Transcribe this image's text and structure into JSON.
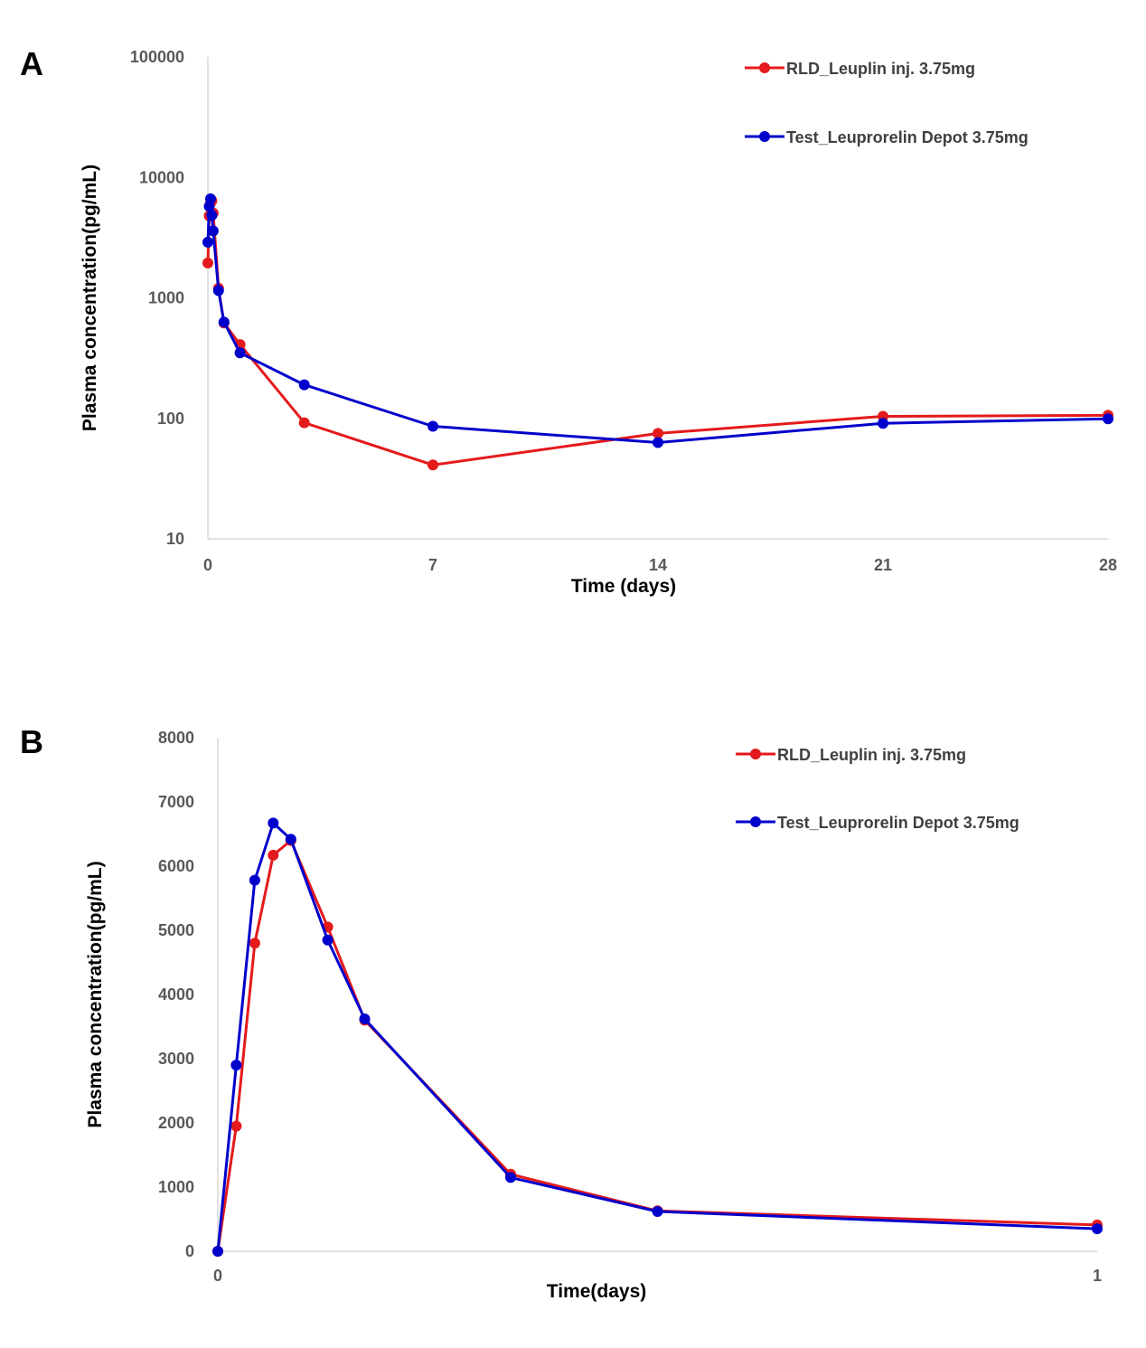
{
  "chart_data": [
    {
      "panel_label": "A",
      "type": "line",
      "y_scale": "log",
      "xlabel": "Time (days)",
      "ylabel": "Plasma concentration(pg/mL)",
      "xlim": [
        0,
        28
      ],
      "ylim": [
        10,
        100000
      ],
      "x_ticks": [
        "0",
        "7",
        "14",
        "21",
        "28"
      ],
      "y_ticks": [
        "10",
        "100",
        "1000",
        "10000",
        "100000"
      ],
      "grid": false,
      "legend_position": "top-right",
      "series": [
        {
          "name": "RLD_Leuplin inj. 3.75mg",
          "color": "#e41a1c",
          "x": [
            0,
            0.042,
            0.083,
            0.125,
            0.167,
            0.333,
            0.5,
            1,
            3,
            7,
            14,
            21,
            28
          ],
          "y": [
            1950,
            4800,
            6150,
            6400,
            5050,
            1200,
            620,
            410,
            92,
            41,
            75,
            104,
            106
          ]
        },
        {
          "name": "Test_Leuprorelin Depot 3.75mg",
          "color": "#0000cc",
          "x": [
            0,
            0.042,
            0.083,
            0.125,
            0.167,
            0.333,
            0.5,
            1,
            3,
            7,
            14,
            21,
            28
          ],
          "y": [
            2900,
            5750,
            6650,
            4850,
            3600,
            1150,
            630,
            350,
            190,
            86,
            63,
            91,
            99
          ]
        }
      ]
    },
    {
      "panel_label": "B",
      "type": "line",
      "y_scale": "linear",
      "xlabel": "Time(days)",
      "ylabel": "Plasma concentration(pg/mL)",
      "xlim": [
        0,
        1
      ],
      "ylim": [
        0,
        8000
      ],
      "x_ticks": [
        "0",
        "1"
      ],
      "y_ticks": [
        "0",
        "1000",
        "2000",
        "3000",
        "4000",
        "5000",
        "6000",
        "7000",
        "8000"
      ],
      "grid": false,
      "legend_position": "top-right",
      "series": [
        {
          "name": "RLD_Leuplin inj. 3.75mg",
          "color": "#e41a1c",
          "x": [
            0,
            0.021,
            0.042,
            0.063,
            0.083,
            0.125,
            0.167,
            0.333,
            0.5,
            1
          ],
          "y": [
            0,
            1950,
            4800,
            6170,
            6400,
            5050,
            3600,
            1200,
            630,
            410
          ]
        },
        {
          "name": "Test_Leuprorelin Depot 3.75mg",
          "color": "#0000cc",
          "x": [
            0,
            0.021,
            0.042,
            0.063,
            0.083,
            0.125,
            0.167,
            0.333,
            0.5,
            1
          ],
          "y": [
            0,
            2900,
            5780,
            6670,
            6420,
            4850,
            3620,
            1150,
            620,
            350
          ]
        }
      ]
    }
  ]
}
